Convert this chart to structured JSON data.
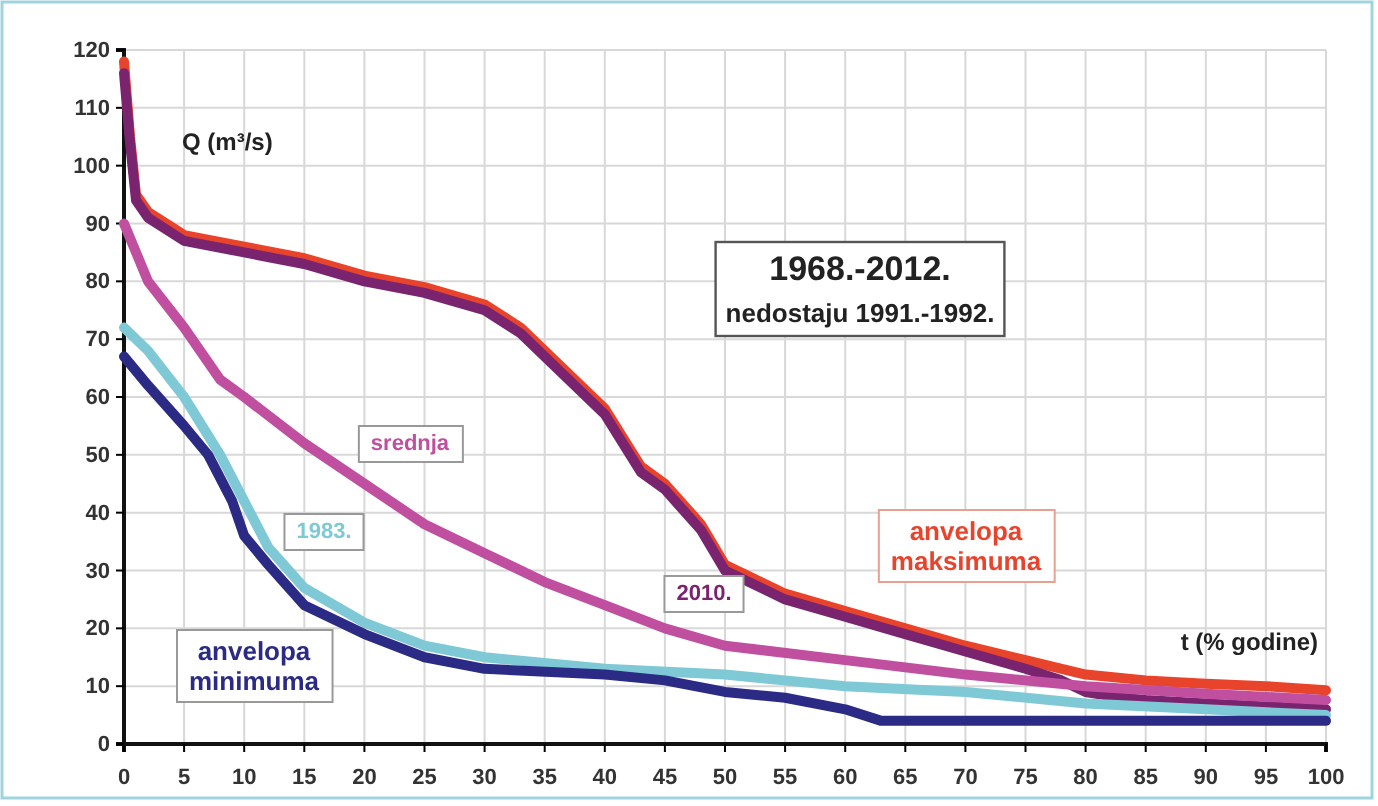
{
  "chart_data": {
    "type": "line",
    "xlabel": "t (% godine)",
    "ylabel": "Q (m³/s)",
    "annotations": [
      "1968.-2012.",
      "nedostaju 1991.-1992."
    ],
    "xlim": [
      0,
      100
    ],
    "xticks": [
      0,
      5,
      10,
      15,
      20,
      25,
      30,
      35,
      40,
      45,
      50,
      55,
      60,
      65,
      70,
      75,
      80,
      85,
      90,
      95,
      100
    ],
    "ylim": [
      0,
      120
    ],
    "yticks": [
      0,
      10,
      20,
      30,
      40,
      50,
      60,
      70,
      80,
      90,
      100,
      110,
      120
    ],
    "grid": true,
    "marker": "none",
    "line_style": "solid",
    "series": [
      {
        "name": "anvelopa maksimuma",
        "color": "#e8442c",
        "x": [
          0,
          0.5,
          1,
          2,
          5,
          10,
          15,
          20,
          25,
          30,
          33,
          36,
          40,
          43,
          45,
          48,
          50,
          55,
          60,
          65,
          70,
          75,
          80,
          85,
          90,
          95,
          100
        ],
        "values": [
          118,
          105,
          95,
          92,
          88,
          86,
          84,
          81,
          79,
          76,
          72,
          66,
          58,
          48,
          45,
          38,
          31,
          26,
          23,
          20,
          17,
          14.5,
          12,
          11,
          10.4,
          10,
          9.3
        ]
      },
      {
        "name": "2010.",
        "color": "#7a2470",
        "x": [
          0,
          0.5,
          1,
          2,
          5,
          10,
          15,
          20,
          25,
          30,
          33,
          36,
          40,
          43,
          45,
          48,
          50,
          55,
          60,
          65,
          70,
          75,
          78,
          80,
          83,
          85,
          90,
          95,
          100
        ],
        "values": [
          116,
          104,
          94,
          91,
          87,
          85,
          83,
          80,
          78,
          75,
          71,
          65,
          57,
          47,
          44,
          37,
          30,
          25,
          22,
          19,
          16,
          13,
          11,
          9,
          8,
          7.6,
          7,
          6.5,
          6
        ]
      },
      {
        "name": "srednja",
        "color": "#c04fa0",
        "x": [
          0,
          1,
          2,
          5,
          8,
          10,
          15,
          20,
          25,
          30,
          35,
          40,
          45,
          50,
          60,
          70,
          80,
          90,
          100
        ],
        "values": [
          90,
          85,
          80,
          72,
          63,
          60,
          52,
          45,
          38,
          33,
          28,
          24,
          20,
          17,
          14.5,
          12,
          10,
          8.7,
          7.6
        ]
      },
      {
        "name": "1983.",
        "color": "#7fc9d6",
        "x": [
          0,
          2,
          5,
          8,
          10,
          12,
          15,
          20,
          25,
          30,
          40,
          50,
          60,
          70,
          80,
          90,
          100
        ],
        "values": [
          72,
          68,
          60,
          50,
          42,
          34,
          27,
          21,
          17,
          15,
          13,
          12,
          10,
          9,
          7,
          6,
          5
        ]
      },
      {
        "name": "anvelopa minimuma",
        "color": "#2b2b86",
        "x": [
          0,
          2,
          5,
          7,
          9,
          10,
          12,
          15,
          20,
          25,
          30,
          40,
          45,
          50,
          55,
          60,
          63,
          70,
          80,
          90,
          100
        ],
        "values": [
          67,
          62,
          55,
          50,
          42,
          36,
          31,
          24,
          19,
          15,
          13,
          12,
          11,
          9,
          8,
          6,
          4,
          4,
          4,
          4,
          4
        ]
      }
    ]
  }
}
